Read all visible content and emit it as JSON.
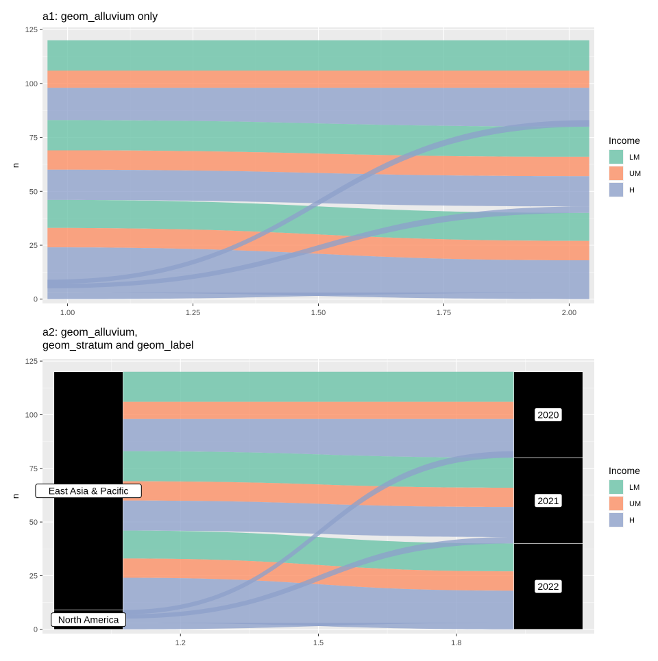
{
  "colors": {
    "LM": "#66c2a5",
    "UM": "#fc8d62",
    "H": "#8da0cb",
    "panel_bg": "#ebebeb",
    "grid": "#ffffff",
    "stratum": "#000000"
  },
  "chart_data": [
    {
      "type": "alluvial",
      "title": "a1: geom_alluvium only",
      "xlabel": "",
      "ylabel": "n",
      "xlim": [
        0.95,
        2.05
      ],
      "ylim": [
        -2,
        126
      ],
      "x_ticks": [
        1.0,
        1.25,
        1.5,
        1.75,
        2.0
      ],
      "x_tick_labels": [
        "1.00",
        "1.25",
        "1.50",
        "1.75",
        "2.00"
      ],
      "y_ticks": [
        0,
        25,
        50,
        75,
        100,
        125
      ],
      "y_tick_labels": [
        "0",
        "25",
        "50",
        "75",
        "100",
        "125"
      ],
      "legend": {
        "title": "Income",
        "position": "right",
        "entries": [
          "LM",
          "UM",
          "H"
        ]
      },
      "flows": [
        {
          "income": "LM",
          "from": [
            106,
            120
          ],
          "to": [
            106,
            120
          ]
        },
        {
          "income": "UM",
          "from": [
            98,
            106
          ],
          "to": [
            98,
            106
          ]
        },
        {
          "income": "H",
          "from": [
            83,
            98
          ],
          "to": [
            80,
            98
          ]
        },
        {
          "income": "LM",
          "from": [
            69,
            83
          ],
          "to": [
            66,
            80
          ]
        },
        {
          "income": "UM",
          "from": [
            60,
            69
          ],
          "to": [
            57,
            66
          ]
        },
        {
          "income": "H",
          "from": [
            46,
            60
          ],
          "to": [
            43,
            57
          ]
        },
        {
          "income": "LM",
          "from": [
            33,
            46
          ],
          "to": [
            27,
            40
          ]
        },
        {
          "income": "UM",
          "from": [
            24,
            33
          ],
          "to": [
            18,
            27
          ]
        },
        {
          "income": "H",
          "from": [
            3,
            24
          ],
          "to": [
            0,
            18
          ]
        },
        {
          "income": "H",
          "from": [
            7,
            9
          ],
          "to": [
            80,
            83
          ]
        },
        {
          "income": "H",
          "from": [
            5,
            7
          ],
          "to": [
            40,
            43
          ]
        },
        {
          "income": "H",
          "from": [
            0,
            3
          ],
          "to": [
            3,
            3
          ]
        }
      ]
    },
    {
      "type": "alluvial",
      "title": "a2: geom_alluvium,\n geom_stratum and geom_label",
      "xlabel": "",
      "ylabel": "n",
      "xlim": [
        0.9,
        2.1
      ],
      "ylim": [
        -2,
        126
      ],
      "x_ticks": [
        1.2,
        1.5,
        1.8
      ],
      "x_tick_labels": [
        "1.2",
        "1.5",
        "1.8"
      ],
      "y_ticks": [
        0,
        25,
        50,
        75,
        100,
        125
      ],
      "y_tick_labels": [
        "0",
        "25",
        "50",
        "75",
        "100",
        "125"
      ],
      "legend": {
        "title": "Income",
        "position": "right",
        "entries": [
          "LM",
          "UM",
          "H"
        ]
      },
      "strata": [
        {
          "x": 1,
          "label": "East Asia & Pacific",
          "range": [
            9,
            120
          ]
        },
        {
          "x": 1,
          "label": "North America",
          "range": [
            0,
            9
          ]
        },
        {
          "x": 2,
          "label": "2020",
          "range": [
            80,
            120
          ]
        },
        {
          "x": 2,
          "label": "2021",
          "range": [
            40,
            80
          ]
        },
        {
          "x": 2,
          "label": "2022",
          "range": [
            0,
            40
          ]
        }
      ],
      "flows": [
        {
          "income": "LM",
          "from": [
            106,
            120
          ],
          "to": [
            106,
            120
          ]
        },
        {
          "income": "UM",
          "from": [
            98,
            106
          ],
          "to": [
            98,
            106
          ]
        },
        {
          "income": "H",
          "from": [
            83,
            98
          ],
          "to": [
            80,
            98
          ]
        },
        {
          "income": "LM",
          "from": [
            69,
            83
          ],
          "to": [
            66,
            80
          ]
        },
        {
          "income": "UM",
          "from": [
            60,
            69
          ],
          "to": [
            57,
            66
          ]
        },
        {
          "income": "H",
          "from": [
            46,
            60
          ],
          "to": [
            43,
            57
          ]
        },
        {
          "income": "LM",
          "from": [
            33,
            46
          ],
          "to": [
            27,
            40
          ]
        },
        {
          "income": "UM",
          "from": [
            24,
            33
          ],
          "to": [
            18,
            27
          ]
        },
        {
          "income": "H",
          "from": [
            3,
            24
          ],
          "to": [
            0,
            18
          ]
        },
        {
          "income": "H",
          "from": [
            7,
            9
          ],
          "to": [
            80,
            83
          ]
        },
        {
          "income": "H",
          "from": [
            5,
            7
          ],
          "to": [
            40,
            43
          ]
        },
        {
          "income": "H",
          "from": [
            0,
            3
          ],
          "to": [
            3,
            3
          ]
        }
      ]
    }
  ]
}
